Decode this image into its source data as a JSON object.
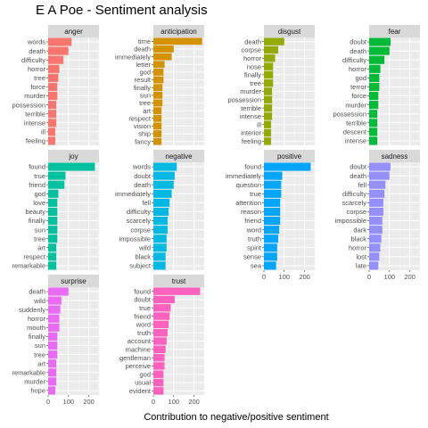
{
  "chart_data": {
    "type": "bar",
    "orientation": "horizontal",
    "title": "E A Poe - Sentiment analysis",
    "xlabel": "Contribution to negative/positive sentiment",
    "ylabel": "",
    "xlim": [
      0,
      250
    ],
    "x_ticks": [
      0,
      100,
      200
    ],
    "grid": true,
    "legend": "none",
    "facets": [
      {
        "name": "anger",
        "color": "#F8766D",
        "categories": [
          "words",
          "death",
          "difficulty",
          "horror",
          "tree",
          "force",
          "murder",
          "possession",
          "terrible",
          "intense",
          "ill",
          "feeling"
        ],
        "values": [
          115,
          100,
          75,
          55,
          50,
          45,
          45,
          40,
          40,
          40,
          35,
          35
        ]
      },
      {
        "name": "anticipation",
        "color": "#D39200",
        "categories": [
          "time",
          "death",
          "immediately",
          "letter",
          "god",
          "result",
          "finally",
          "sun",
          "tree",
          "art",
          "respect",
          "vision",
          "ship",
          "fancy"
        ],
        "values": [
          240,
          100,
          90,
          55,
          50,
          50,
          45,
          45,
          45,
          40,
          40,
          40,
          40,
          40
        ]
      },
      {
        "name": "disgust",
        "color": "#93AA00",
        "categories": [
          "death",
          "corpse",
          "horror",
          "nose",
          "finally",
          "tree",
          "murder",
          "possession",
          "terrible",
          "intense",
          "ill",
          "interior",
          "feeling"
        ],
        "values": [
          100,
          70,
          55,
          45,
          45,
          45,
          40,
          40,
          40,
          40,
          35,
          35,
          35
        ]
      },
      {
        "name": "fear",
        "color": "#00BA38",
        "categories": [
          "doubt",
          "death",
          "difficulty",
          "horror",
          "god",
          "terror",
          "force",
          "murder",
          "possession",
          "terrible",
          "descent",
          "intense"
        ],
        "values": [
          105,
          100,
          75,
          55,
          50,
          50,
          45,
          45,
          40,
          40,
          40,
          40
        ]
      },
      {
        "name": "joy",
        "color": "#00C19F",
        "categories": [
          "found",
          "true",
          "friend",
          "god",
          "love",
          "beauty",
          "finally",
          "sun",
          "tree",
          "art",
          "respect",
          "remarkable"
        ],
        "values": [
          230,
          85,
          80,
          50,
          45,
          45,
          45,
          45,
          45,
          40,
          40,
          40
        ]
      },
      {
        "name": "negative",
        "color": "#00B9E3",
        "categories": [
          "words",
          "doubt",
          "death",
          "immediately",
          "fell",
          "difficulty",
          "scarcely",
          "corpse",
          "impossible",
          "wild",
          "black",
          "subject"
        ],
        "values": [
          115,
          105,
          100,
          90,
          80,
          75,
          70,
          70,
          65,
          65,
          60,
          60
        ]
      },
      {
        "name": "positive",
        "color": "#00A5FF",
        "categories": [
          "found",
          "immediately",
          "question",
          "true",
          "attention",
          "reason",
          "friend",
          "word",
          "truth",
          "spirit",
          "sense",
          "sea"
        ],
        "values": [
          230,
          90,
          85,
          85,
          80,
          80,
          80,
          75,
          70,
          65,
          65,
          60
        ]
      },
      {
        "name": "sadness",
        "color": "#9590FF",
        "categories": [
          "doubt",
          "death",
          "fell",
          "difficulty",
          "scarcely",
          "corpse",
          "impossible",
          "dark",
          "black",
          "horror",
          "lost",
          "late"
        ],
        "values": [
          105,
          100,
          80,
          75,
          70,
          70,
          65,
          65,
          60,
          55,
          50,
          45
        ]
      },
      {
        "name": "surprise",
        "color": "#E76BF3",
        "categories": [
          "death",
          "wild",
          "suddenly",
          "horror",
          "mouth",
          "finally",
          "sun",
          "tree",
          "art",
          "remarkable",
          "murder",
          "hope"
        ],
        "values": [
          100,
          65,
          60,
          55,
          55,
          45,
          45,
          45,
          40,
          40,
          40,
          35
        ]
      },
      {
        "name": "trust",
        "color": "#FF62BC",
        "categories": [
          "found",
          "doubt",
          "true",
          "friend",
          "word",
          "truth",
          "account",
          "machine",
          "gentleman",
          "perceive",
          "god",
          "usual",
          "evident"
        ],
        "values": [
          230,
          105,
          85,
          80,
          75,
          70,
          65,
          60,
          55,
          55,
          50,
          50,
          50
        ]
      }
    ]
  }
}
